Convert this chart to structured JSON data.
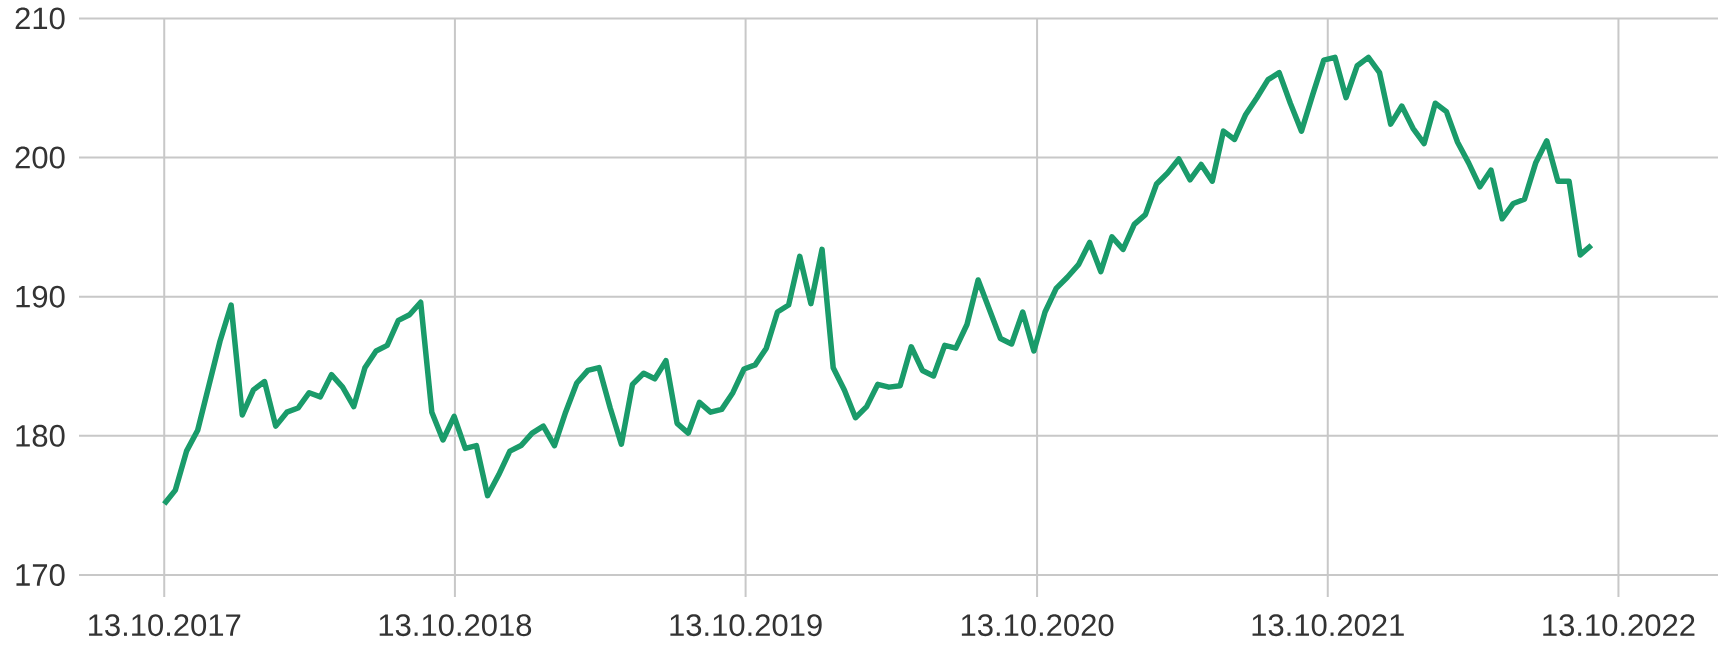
{
  "chart_data": {
    "type": "line",
    "color": "#1a9b6a",
    "grid": true,
    "marker": "none",
    "line_style": "solid",
    "xlim": [
      "2017-06-28",
      "2023-02-15"
    ],
    "ylim": [
      170,
      210
    ],
    "yticks": [
      170,
      180,
      190,
      200,
      210
    ],
    "xticks": [
      {
        "value": "2017-10-13",
        "label": "13.10.2017"
      },
      {
        "value": "2018-10-13",
        "label": "13.10.2018"
      },
      {
        "value": "2019-10-13",
        "label": "13.10.2019"
      },
      {
        "value": "2020-10-13",
        "label": "13.10.2020"
      },
      {
        "value": "2021-10-13",
        "label": "13.10.2021"
      },
      {
        "value": "2022-10-13",
        "label": "13.10.2022"
      }
    ],
    "x": [
      "2017-10-13",
      "2017-10-27",
      "2017-11-10",
      "2017-11-24",
      "2017-12-08",
      "2017-12-22",
      "2018-01-05",
      "2018-01-19",
      "2018-02-02",
      "2018-02-16",
      "2018-03-02",
      "2018-03-16",
      "2018-03-30",
      "2018-04-13",
      "2018-04-27",
      "2018-05-11",
      "2018-05-25",
      "2018-06-08",
      "2018-06-22",
      "2018-07-06",
      "2018-07-20",
      "2018-08-03",
      "2018-08-17",
      "2018-08-31",
      "2018-09-14",
      "2018-09-28",
      "2018-10-12",
      "2018-10-26",
      "2018-11-09",
      "2018-11-23",
      "2018-12-07",
      "2018-12-21",
      "2019-01-04",
      "2019-01-18",
      "2019-02-01",
      "2019-02-15",
      "2019-03-01",
      "2019-03-15",
      "2019-03-29",
      "2019-04-12",
      "2019-04-26",
      "2019-05-10",
      "2019-05-24",
      "2019-06-07",
      "2019-06-21",
      "2019-07-05",
      "2019-07-19",
      "2019-08-02",
      "2019-08-16",
      "2019-08-30",
      "2019-09-13",
      "2019-09-27",
      "2019-10-11",
      "2019-10-25",
      "2019-11-08",
      "2019-11-22",
      "2019-12-06",
      "2019-12-20",
      "2020-01-03",
      "2020-01-17",
      "2020-01-31",
      "2020-02-14",
      "2020-02-28",
      "2020-03-13",
      "2020-03-27",
      "2020-04-10",
      "2020-04-24",
      "2020-05-08",
      "2020-05-22",
      "2020-06-05",
      "2020-06-19",
      "2020-07-03",
      "2020-07-17",
      "2020-07-31",
      "2020-08-14",
      "2020-08-28",
      "2020-09-11",
      "2020-09-25",
      "2020-10-09",
      "2020-10-23",
      "2020-11-06",
      "2020-11-20",
      "2020-12-04",
      "2020-12-18",
      "2021-01-01",
      "2021-01-15",
      "2021-01-29",
      "2021-02-12",
      "2021-02-26",
      "2021-03-12",
      "2021-03-26",
      "2021-04-09",
      "2021-04-23",
      "2021-05-07",
      "2021-05-21",
      "2021-06-04",
      "2021-06-18",
      "2021-07-02",
      "2021-07-16",
      "2021-07-30",
      "2021-08-13",
      "2021-08-27",
      "2021-09-10",
      "2021-09-24",
      "2021-10-08",
      "2021-10-22",
      "2021-11-05",
      "2021-11-19",
      "2021-12-03",
      "2021-12-17",
      "2021-12-31",
      "2022-01-14",
      "2022-01-28",
      "2022-02-11",
      "2022-02-25",
      "2022-03-11",
      "2022-03-25",
      "2022-04-08",
      "2022-04-22",
      "2022-05-06",
      "2022-05-20",
      "2022-06-03",
      "2022-06-17",
      "2022-07-01",
      "2022-07-15",
      "2022-07-29",
      "2022-08-12",
      "2022-08-26",
      "2022-09-09"
    ],
    "values": [
      175.1,
      176.1,
      178.9,
      180.4,
      183.6,
      186.8,
      189.4,
      181.5,
      183.3,
      183.9,
      180.7,
      181.7,
      182.0,
      183.1,
      182.8,
      184.4,
      183.5,
      182.1,
      184.9,
      186.1,
      186.5,
      188.3,
      188.7,
      189.6,
      181.7,
      179.7,
      181.4,
      179.1,
      179.3,
      175.7,
      177.2,
      178.9,
      179.3,
      180.2,
      180.7,
      179.3,
      181.7,
      183.8,
      184.7,
      184.9,
      182.0,
      179.4,
      183.7,
      184.5,
      184.1,
      185.4,
      180.9,
      180.2,
      182.4,
      181.7,
      181.9,
      183.1,
      184.8,
      185.1,
      186.3,
      188.9,
      189.4,
      192.9,
      189.5,
      193.4,
      184.9,
      183.3,
      181.3,
      182.1,
      183.7,
      183.5,
      183.6,
      186.4,
      184.7,
      184.3,
      186.5,
      186.3,
      188.0,
      191.2,
      189.1,
      187.0,
      186.6,
      188.9,
      186.1,
      188.9,
      190.6,
      191.4,
      192.3,
      193.9,
      191.8,
      194.3,
      193.4,
      195.2,
      195.9,
      198.1,
      198.9,
      199.9,
      198.4,
      199.5,
      198.3,
      201.9,
      201.3,
      203.1,
      204.3,
      205.6,
      206.1,
      203.9,
      201.9,
      204.5,
      207.0,
      207.2,
      204.3,
      206.6,
      207.2,
      206.1,
      202.4,
      203.7,
      202.1,
      201.0,
      203.9,
      203.3,
      201.1,
      199.6,
      197.9,
      199.1,
      195.6,
      196.7,
      197.0,
      199.6,
      201.2,
      198.3,
      198.3,
      193.0,
      193.7
    ]
  }
}
